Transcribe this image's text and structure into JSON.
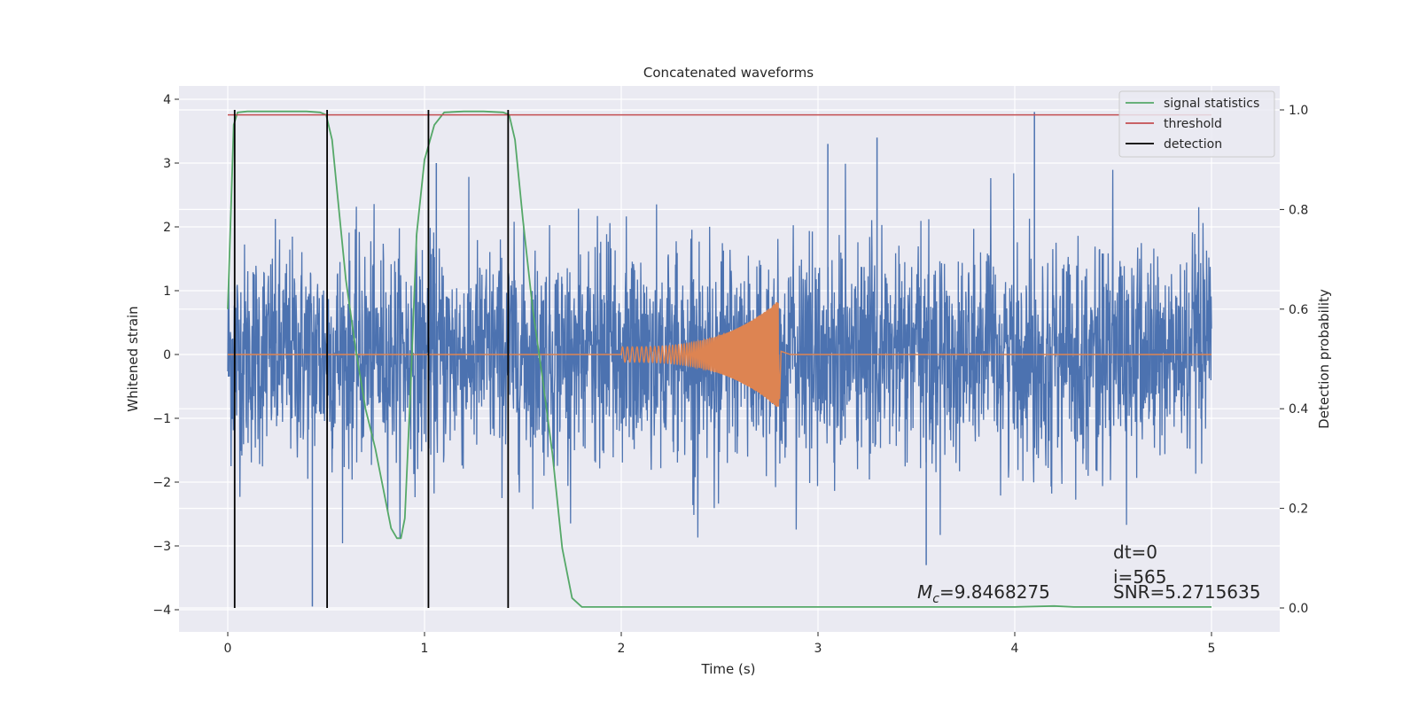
{
  "chart_data": {
    "type": "line",
    "title": "Concatenated waveforms",
    "xlabel": "Time (s)",
    "ylabel": "Whitened strain",
    "y2label": "Detection probability",
    "xlim": [
      -0.25,
      5.35
    ],
    "ylim": [
      -4.38,
      4.22
    ],
    "y2lim": [
      -0.05,
      1.05
    ],
    "grid": true,
    "legend_position": "top-right",
    "xticks": [
      0,
      1,
      2,
      3,
      4,
      5
    ],
    "xtick_labels": [
      "0",
      "1",
      "2",
      "3",
      "4",
      "5"
    ],
    "yticks": [
      -4,
      -3,
      -2,
      -1,
      0,
      1,
      2,
      3,
      4
    ],
    "ytick_labels": [
      "−4",
      "−3",
      "−2",
      "−1",
      "0",
      "1",
      "2",
      "3",
      "4"
    ],
    "y2ticks": [
      0.0,
      0.2,
      0.4,
      0.6,
      0.8,
      1.0
    ],
    "y2tick_labels": [
      "0.0",
      "0.2",
      "0.4",
      "0.6",
      "0.8",
      "1.0"
    ],
    "colors": {
      "strain": "#4c72b0",
      "template": "#dd8452",
      "signal_statistics": "#55a868",
      "threshold": "#c44e52",
      "detection": "#000000",
      "plot_background": "#eaeaf2",
      "grid": "#ffffff"
    },
    "series": [
      {
        "name": "signal statistics",
        "axis": "right",
        "x": [
          0.0,
          0.03,
          0.05,
          0.1,
          0.2,
          0.3,
          0.4,
          0.47,
          0.5,
          0.53,
          0.56,
          0.6,
          0.65,
          0.7,
          0.75,
          0.8,
          0.83,
          0.86,
          0.88,
          0.9,
          0.93,
          0.96,
          1.0,
          1.05,
          1.1,
          1.2,
          1.3,
          1.4,
          1.43,
          1.46,
          1.5,
          1.55,
          1.6,
          1.65,
          1.7,
          1.75,
          1.8,
          2.0,
          3.0,
          3.5,
          4.0,
          4.2,
          4.3,
          5.0
        ],
        "y": [
          0.6,
          0.97,
          0.995,
          0.997,
          0.997,
          0.997,
          0.997,
          0.995,
          0.99,
          0.94,
          0.82,
          0.66,
          0.52,
          0.4,
          0.32,
          0.22,
          0.16,
          0.14,
          0.14,
          0.18,
          0.45,
          0.75,
          0.9,
          0.97,
          0.995,
          0.997,
          0.997,
          0.995,
          0.99,
          0.94,
          0.78,
          0.6,
          0.46,
          0.31,
          0.12,
          0.02,
          0.002,
          0.002,
          0.002,
          0.002,
          0.002,
          0.004,
          0.002,
          0.002
        ]
      },
      {
        "name": "threshold",
        "axis": "right",
        "x": [
          0.0,
          5.0
        ],
        "y": [
          0.99,
          0.99
        ]
      },
      {
        "name": "detection",
        "axis": "right",
        "kind": "vlines",
        "x": [
          0.035,
          0.505,
          1.02,
          1.425
        ],
        "ymin": 0.0,
        "ymax": 1.0
      }
    ],
    "strain_noise": {
      "axis": "left",
      "x_range": [
        0.0,
        5.0
      ],
      "samples": 3000,
      "core_sigma": 0.85,
      "typical_peak": 2.4,
      "spike_x": [
        0.43,
        4.1,
        1.06,
        3.55,
        3.3,
        3.05
      ],
      "spike_y": [
        -3.95,
        3.8,
        3.0,
        -3.3,
        3.4,
        3.3
      ]
    },
    "template": {
      "axis": "left",
      "x_range": [
        0.0,
        5.0
      ],
      "chirp_start": 2.0,
      "chirp_end": 2.8,
      "amp_start": 0.12,
      "amp_end": 0.85,
      "amp_min_end": -0.7,
      "ringdown_end": 2.86
    },
    "annotations": {
      "dt": "dt=0",
      "i": "i=565",
      "snr": "SNR=5.2715635",
      "mc_symbol": "M",
      "mc_subscript": "c",
      "mc_value": "=9.8468275"
    }
  }
}
